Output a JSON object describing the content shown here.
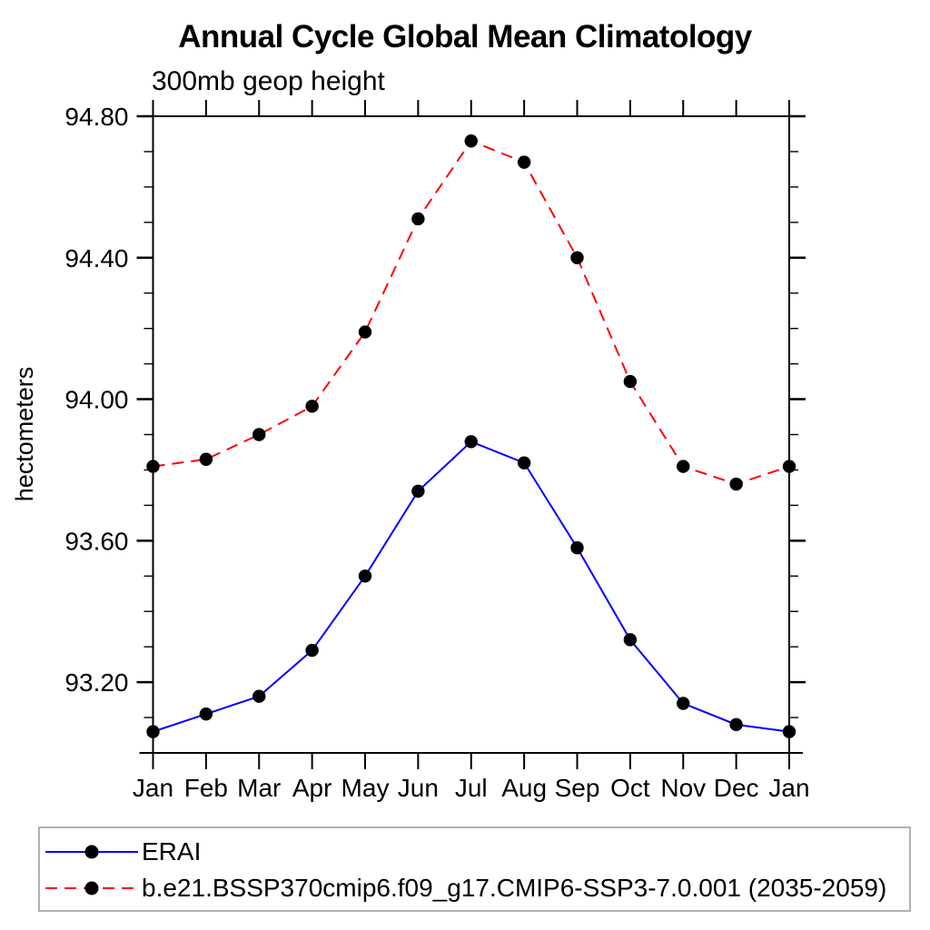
{
  "page": {
    "title": "Annual Cycle Global Mean Climatology",
    "subtitle": "300mb geop height"
  },
  "chart_data": {
    "type": "line",
    "title": "Annual Cycle Global Mean Climatology",
    "subtitle": "300mb geop height",
    "xlabel": "",
    "ylabel": "hectometers",
    "categories": [
      "Jan",
      "Feb",
      "Mar",
      "Apr",
      "May",
      "Jun",
      "Jul",
      "Aug",
      "Sep",
      "Oct",
      "Nov",
      "Dec",
      "Jan"
    ],
    "ylim": [
      93.0,
      94.8
    ],
    "ytick_major": [
      93.2,
      93.6,
      94.0,
      94.4,
      94.8
    ],
    "ytick_major_labels": [
      "93.20",
      "93.60",
      "94.00",
      "94.40",
      "94.80"
    ],
    "ytick_minor_step": 0.1,
    "grid": false,
    "legend_position": "bottom",
    "marker": "filled-circle",
    "marker_color": "#000000",
    "axis_color": "#000000",
    "legend_border_color": "#b2b2b2",
    "series": [
      {
        "name": "ERAI",
        "color": "#0000ff",
        "line_style": "solid",
        "values": [
          93.06,
          93.11,
          93.16,
          93.29,
          93.5,
          93.74,
          93.88,
          93.82,
          93.58,
          93.32,
          93.14,
          93.08,
          93.06
        ]
      },
      {
        "name": "b.e21.BSSP370cmip6.f09_g17.CMIP6-SSP3-7.0.001 (2035-2059)",
        "color": "#ff0000",
        "line_style": "dashed",
        "values": [
          93.81,
          93.83,
          93.9,
          93.98,
          94.19,
          94.51,
          94.73,
          94.67,
          94.4,
          94.05,
          93.81,
          93.76,
          93.81
        ]
      }
    ]
  }
}
